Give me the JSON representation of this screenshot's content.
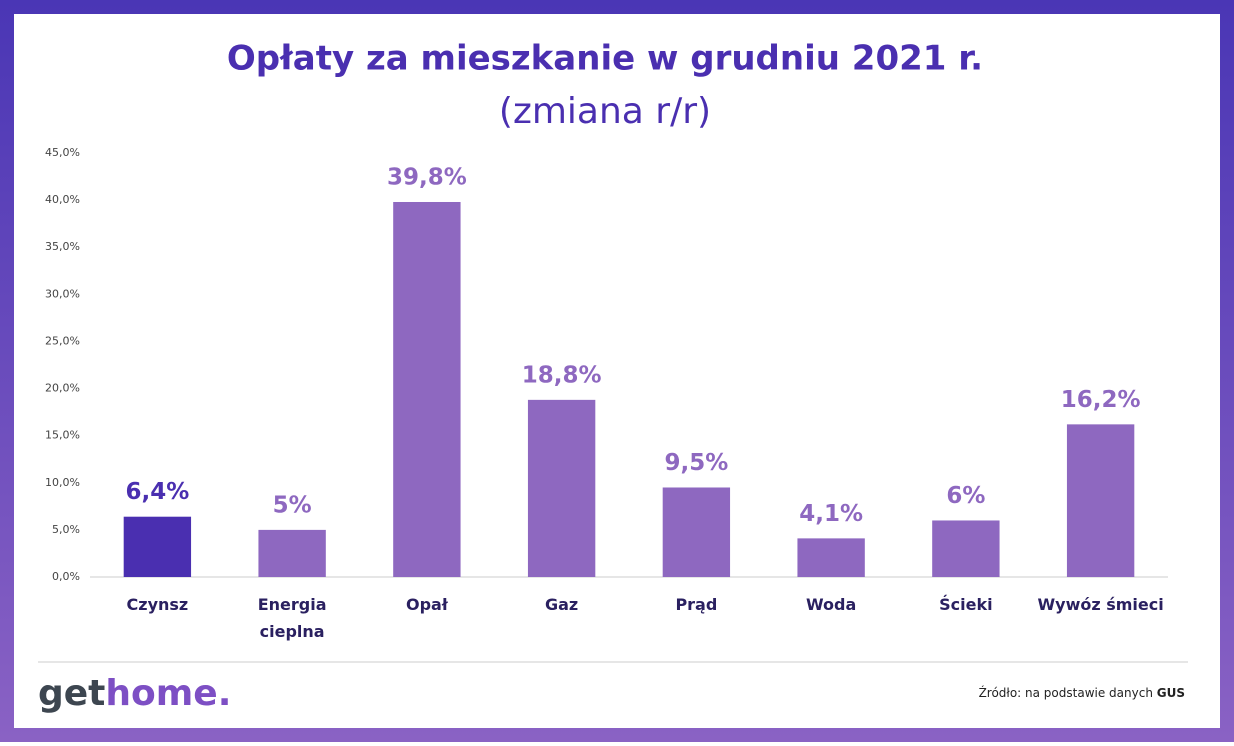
{
  "chart_data": {
    "type": "bar",
    "title": "Opłaty za mieszkanie w grudniu 2021 r.",
    "subtitle": "(zmiana r/r)",
    "categories": [
      "Czynsz",
      "Energia\ncieplna",
      "Opał",
      "Gaz",
      "Prąd",
      "Woda",
      "Ścieki",
      "Wywóz śmieci"
    ],
    "values": [
      6.4,
      5,
      39.8,
      18.8,
      9.5,
      4.1,
      6,
      16.2
    ],
    "value_labels": [
      "6,4%",
      "5%",
      "39,8%",
      "18,8%",
      "9,5%",
      "4,1%",
      "6%",
      "16,2%"
    ],
    "colors": [
      "#4a2fb0",
      "#8e68c0",
      "#8e68c0",
      "#8e68c0",
      "#8e68c0",
      "#8e68c0",
      "#8e68c0",
      "#8e68c0"
    ],
    "ylim": [
      0,
      45
    ],
    "yticks": [
      {
        "value": 0,
        "label": "0,0%"
      },
      {
        "value": 5,
        "label": "5,0%"
      },
      {
        "value": 10,
        "label": "10,0%"
      },
      {
        "value": 15,
        "label": "15,0%"
      },
      {
        "value": 20,
        "label": "20,0%"
      },
      {
        "value": 25,
        "label": "25,0%"
      },
      {
        "value": 30,
        "label": "30,0%"
      },
      {
        "value": 35,
        "label": "35,0%"
      },
      {
        "value": 40,
        "label": "40,0%"
      },
      {
        "value": 45,
        "label": "45,0%"
      }
    ],
    "grid": false
  },
  "footer": {
    "logo": [
      "get",
      "home."
    ],
    "source": [
      "Źródło: na podstawie danych ",
      "GUS"
    ]
  }
}
